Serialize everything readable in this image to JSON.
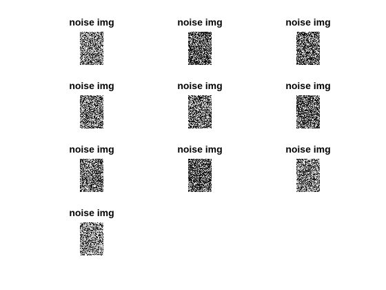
{
  "figure": {
    "background": "#ffffff",
    "panels": [
      {
        "title": "noise img",
        "density": 0.42
      },
      {
        "title": "noise img",
        "density": 0.62
      },
      {
        "title": "noise img",
        "density": 0.58
      },
      {
        "title": "noise img",
        "density": 0.48
      },
      {
        "title": "noise img",
        "density": 0.5
      },
      {
        "title": "noise img",
        "density": 0.6
      },
      {
        "title": "noise img",
        "density": 0.52
      },
      {
        "title": "noise img",
        "density": 0.63
      },
      {
        "title": "noise img",
        "density": 0.45
      },
      {
        "title": "noise img",
        "density": 0.4
      }
    ]
  }
}
